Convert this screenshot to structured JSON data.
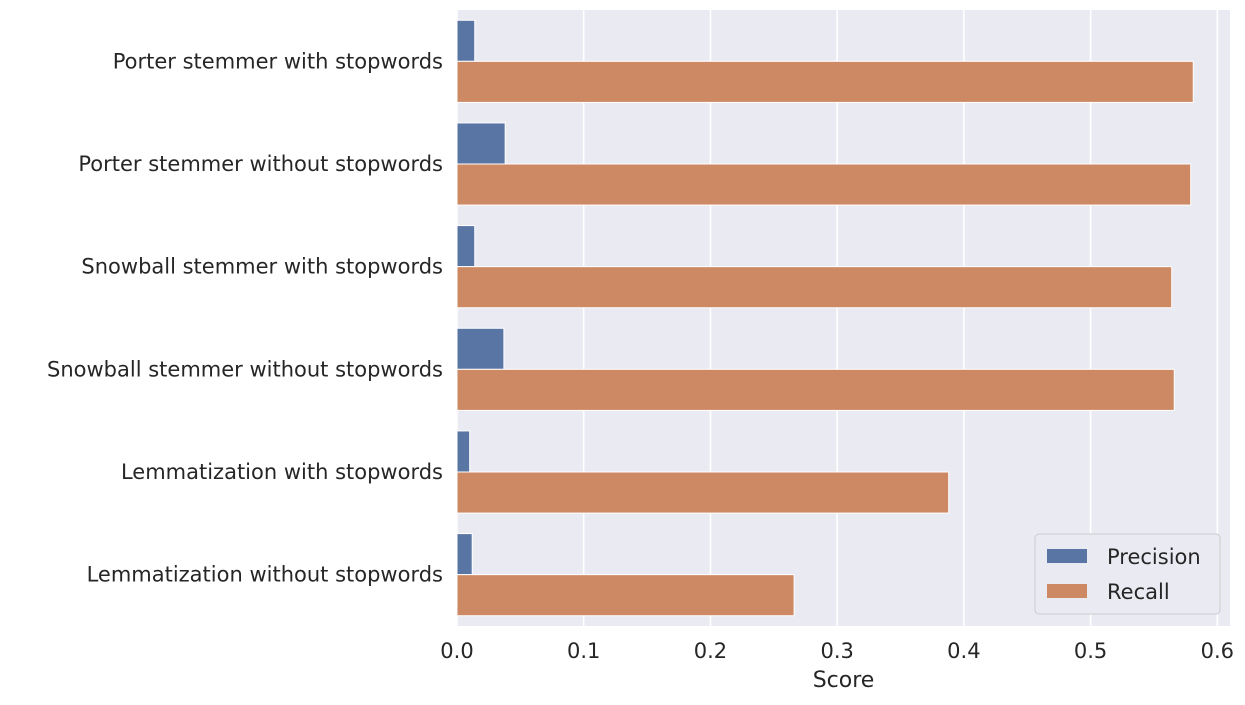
{
  "chart_data": {
    "type": "bar",
    "orientation": "horizontal",
    "categories": [
      "Porter stemmer with stopwords",
      "Porter stemmer without stopwords",
      "Snowball stemmer with stopwords",
      "Snowball stemmer without stopwords",
      "Lemmatization with stopwords",
      "Lemmatization without stopwords"
    ],
    "series": [
      {
        "name": "Precision",
        "color": "#5975a4",
        "values": [
          0.014,
          0.038,
          0.014,
          0.037,
          0.01,
          0.012
        ]
      },
      {
        "name": "Recall",
        "color": "#cc8963",
        "values": [
          0.581,
          0.579,
          0.564,
          0.566,
          0.388,
          0.266
        ]
      }
    ],
    "title": "",
    "xlabel": "Score",
    "ylabel": "",
    "xlim": [
      0,
      0.61
    ],
    "xticks": [
      "0.0",
      "0.1",
      "0.2",
      "0.3",
      "0.4",
      "0.5",
      "0.6"
    ],
    "grid": true,
    "legend_position": "lower-right",
    "background": "#eaeaf2"
  }
}
